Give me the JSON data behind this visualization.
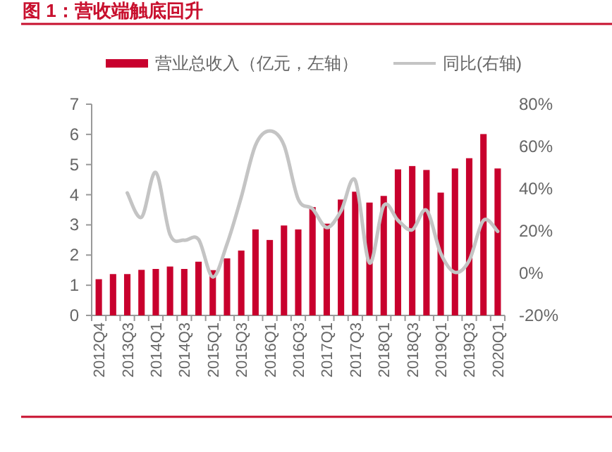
{
  "chart_data": {
    "type": "bar",
    "title": "图 1：营收端触底回升",
    "categories": [
      "2012Q4",
      null,
      "2013Q3",
      null,
      "2014Q1",
      null,
      "2014Q3",
      null,
      "2015Q1",
      null,
      "2015Q3",
      null,
      "2016Q1",
      null,
      "2016Q3",
      null,
      "2017Q1",
      null,
      "2017Q3",
      null,
      "2018Q1",
      null,
      "2018Q3",
      null,
      "2019Q1",
      null,
      "2019Q3",
      null,
      "2020Q1"
    ],
    "series": [
      {
        "name": "营业总收入（亿元，左轴）",
        "color": "#c8002d",
        "values": [
          1.2,
          1.37,
          1.37,
          1.51,
          1.54,
          1.62,
          1.54,
          1.78,
          1.5,
          1.89,
          2.15,
          2.85,
          2.5,
          2.98,
          2.85,
          3.59,
          3.04,
          3.84,
          4.1,
          3.74,
          3.96,
          4.84,
          4.95,
          4.82,
          4.07,
          4.87,
          5.21,
          6.01,
          4.87
        ]
      },
      {
        "name": "同比(右轴)",
        "type": "line",
        "axis": "y2",
        "color": "#c4c4c4",
        "values": [
          null,
          null,
          38,
          26.5,
          47.7,
          18.3,
          15.6,
          16,
          -1.8,
          13.8,
          36,
          60.6,
          67.3,
          60.6,
          35,
          30.5,
          21.6,
          29.4,
          43.9,
          4.9,
          32,
          25,
          20.5,
          29.8,
          9.4,
          0.4,
          6,
          25,
          19.8
        ]
      }
    ],
    "ylim": [
      0,
      7
    ],
    "yticks": [
      0,
      1,
      2,
      3,
      4,
      5,
      6,
      7
    ],
    "y2lim": [
      -20,
      80
    ],
    "y2ticks": [
      {
        "value": -20,
        "label": "-20%"
      },
      {
        "value": 0,
        "label": "0%"
      },
      {
        "value": 20,
        "label": "20%"
      },
      {
        "value": 40,
        "label": "40%"
      },
      {
        "value": 60,
        "label": "60%"
      },
      {
        "value": 80,
        "label": "80%"
      }
    ],
    "legend": "top",
    "grid": false
  }
}
